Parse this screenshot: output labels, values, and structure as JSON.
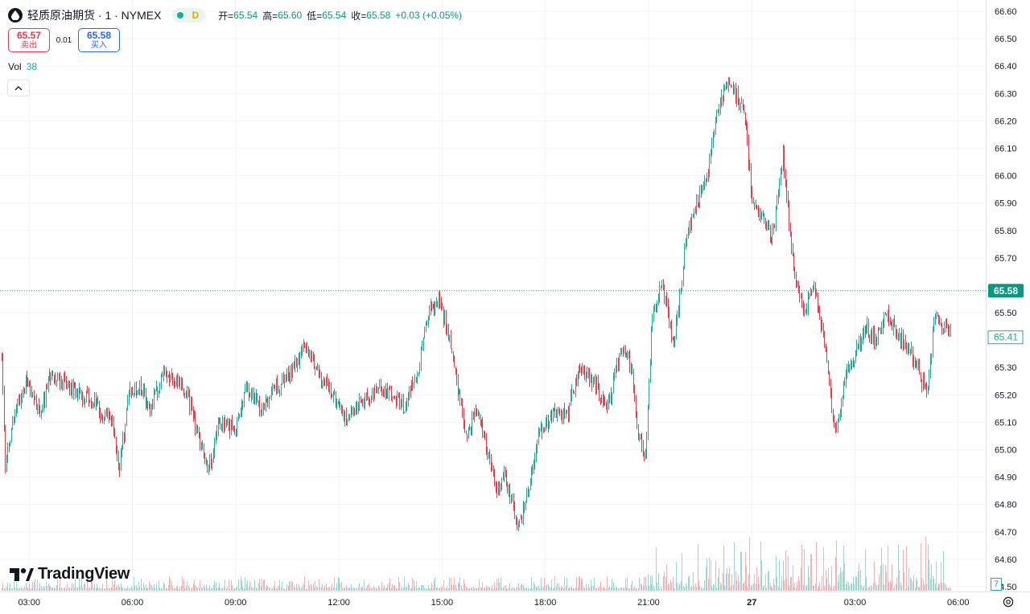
{
  "header": {
    "symbol_title": "轻质原油期货 · 1 · NYMEX",
    "status_letter": "D",
    "ohlc": [
      {
        "label": "开=",
        "value": "65.54"
      },
      {
        "label": "高=",
        "value": "65.60"
      },
      {
        "label": "低=",
        "value": "65.54"
      },
      {
        "label": "收=",
        "value": "65.58"
      },
      {
        "label": "",
        "value": "+0.03 (+0.05%)"
      }
    ]
  },
  "trade": {
    "sell_price": "65.57",
    "sell_label": "卖出",
    "spread": "0.01",
    "buy_price": "65.58",
    "buy_label": "买入"
  },
  "volume": {
    "label": "Vol",
    "value": "38",
    "badge": "7"
  },
  "branding": {
    "logo_text": "TradingView"
  },
  "colors": {
    "up": "#22ab94",
    "down": "#f23645",
    "grid": "#f0f3fa",
    "text": "#131722",
    "last_price_bg": "#089981"
  },
  "chart_data": {
    "type": "candlestick",
    "interval": "1 minute",
    "y_range": [
      64.5,
      66.6
    ],
    "y_ticks": [
      "66.60",
      "66.50",
      "66.40",
      "66.30",
      "66.20",
      "66.10",
      "66.00",
      "65.90",
      "65.80",
      "65.70",
      "65.50",
      "65.30",
      "65.20",
      "65.10",
      "65.00",
      "64.90",
      "64.80",
      "64.70",
      "64.60",
      "64.50"
    ],
    "x_ticks": [
      {
        "t": 3.0,
        "label": "03:00"
      },
      {
        "t": 6.0,
        "label": "06:00"
      },
      {
        "t": 9.0,
        "label": "09:00"
      },
      {
        "t": 12.0,
        "label": "12:00"
      },
      {
        "t": 15.0,
        "label": "15:00"
      },
      {
        "t": 18.0,
        "label": "18:00"
      },
      {
        "t": 21.0,
        "label": "21:00"
      },
      {
        "t": 24.0,
        "label": "27"
      },
      {
        "t": 27.0,
        "label": "03:00"
      },
      {
        "t": 30.0,
        "label": "06:00"
      }
    ],
    "x_range": [
      2.2,
      30.8
    ],
    "last_price": "65.58",
    "alt_price": "65.41",
    "path": [
      [
        2.2,
        65.35
      ],
      [
        2.3,
        64.95
      ],
      [
        2.5,
        65.1
      ],
      [
        2.9,
        65.25
      ],
      [
        3.3,
        65.12
      ],
      [
        3.6,
        65.28
      ],
      [
        4.2,
        65.22
      ],
      [
        4.8,
        65.18
      ],
      [
        5.4,
        65.1
      ],
      [
        5.6,
        64.93
      ],
      [
        5.9,
        65.2
      ],
      [
        6.2,
        65.24
      ],
      [
        6.5,
        65.15
      ],
      [
        6.9,
        65.28
      ],
      [
        7.3,
        65.25
      ],
      [
        7.6,
        65.2
      ],
      [
        7.9,
        65.05
      ],
      [
        8.2,
        64.92
      ],
      [
        8.5,
        65.1
      ],
      [
        9.0,
        65.08
      ],
      [
        9.3,
        65.24
      ],
      [
        9.7,
        65.15
      ],
      [
        10.1,
        65.22
      ],
      [
        10.6,
        65.28
      ],
      [
        11.0,
        65.38
      ],
      [
        11.4,
        65.27
      ],
      [
        11.8,
        65.2
      ],
      [
        12.2,
        65.12
      ],
      [
        12.7,
        65.18
      ],
      [
        13.2,
        65.22
      ],
      [
        13.6,
        65.2
      ],
      [
        13.9,
        65.15
      ],
      [
        14.3,
        65.3
      ],
      [
        14.6,
        65.5
      ],
      [
        14.9,
        65.55
      ],
      [
        15.2,
        65.4
      ],
      [
        15.4,
        65.25
      ],
      [
        15.7,
        65.05
      ],
      [
        16.0,
        65.15
      ],
      [
        16.3,
        65.0
      ],
      [
        16.6,
        64.85
      ],
      [
        16.8,
        64.9
      ],
      [
        17.0,
        64.82
      ],
      [
        17.2,
        64.72
      ],
      [
        17.4,
        64.8
      ],
      [
        17.8,
        65.05
      ],
      [
        18.3,
        65.15
      ],
      [
        18.6,
        65.12
      ],
      [
        19.0,
        65.3
      ],
      [
        19.4,
        65.25
      ],
      [
        19.8,
        65.15
      ],
      [
        20.2,
        65.38
      ],
      [
        20.5,
        65.3
      ],
      [
        20.7,
        65.05
      ],
      [
        20.9,
        64.97
      ],
      [
        21.1,
        65.5
      ],
      [
        21.4,
        65.6
      ],
      [
        21.7,
        65.38
      ],
      [
        21.9,
        65.55
      ],
      [
        22.1,
        65.78
      ],
      [
        22.4,
        65.9
      ],
      [
        22.7,
        66.0
      ],
      [
        23.0,
        66.25
      ],
      [
        23.3,
        66.35
      ],
      [
        23.5,
        66.3
      ],
      [
        23.8,
        66.22
      ],
      [
        24.0,
        65.9
      ],
      [
        24.3,
        65.85
      ],
      [
        24.6,
        65.78
      ],
      [
        24.9,
        66.08
      ],
      [
        25.2,
        65.65
      ],
      [
        25.5,
        65.5
      ],
      [
        25.8,
        65.6
      ],
      [
        26.1,
        65.4
      ],
      [
        26.4,
        65.05
      ],
      [
        26.7,
        65.25
      ],
      [
        27.0,
        65.35
      ],
      [
        27.3,
        65.45
      ],
      [
        27.6,
        65.4
      ],
      [
        27.9,
        65.5
      ],
      [
        28.2,
        65.42
      ],
      [
        28.5,
        65.38
      ],
      [
        28.8,
        65.3
      ],
      [
        29.1,
        65.2
      ],
      [
        29.3,
        65.5
      ],
      [
        29.5,
        65.45
      ],
      [
        29.8,
        65.43
      ]
    ]
  }
}
